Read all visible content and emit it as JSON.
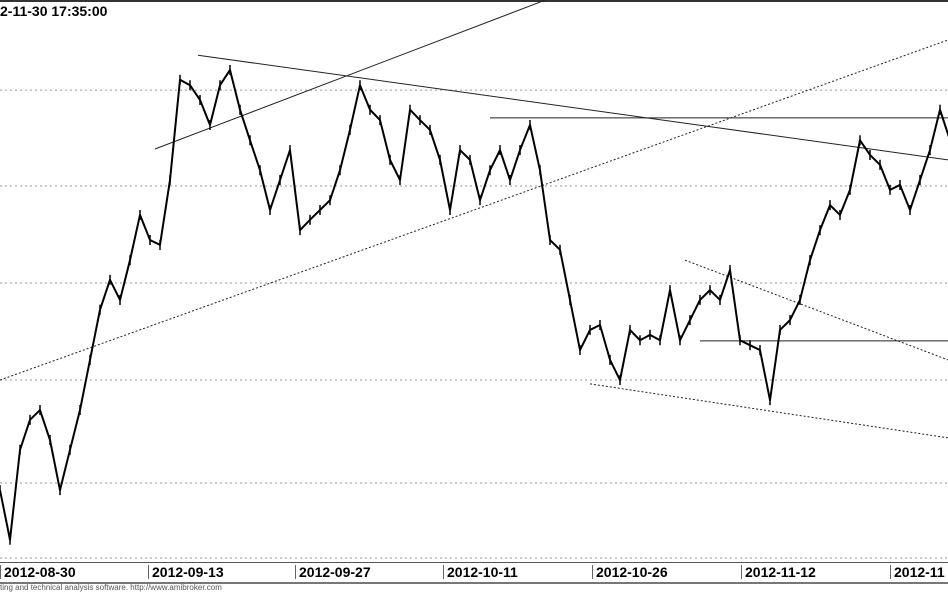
{
  "header": {
    "title": "2-11-30 17:35:00"
  },
  "footer": {
    "text": "ting and technical analysis software. http://www.amibroker.com"
  },
  "chart_data": {
    "type": "line",
    "title": "2-11-30 17:35:00",
    "xlabel": "",
    "ylabel": "",
    "ylim": [
      0,
      100
    ],
    "xlim": [
      0,
      94.8
    ],
    "grid": true,
    "gridlines_y": [
      85.3,
      67.7,
      49.9,
      32.1,
      13.2
    ],
    "x_ticks": [
      {
        "index": 0,
        "label": "2012-08-30"
      },
      {
        "index": 14.8,
        "label": "2012-09-13"
      },
      {
        "index": 29.5,
        "label": "2012-09-27"
      },
      {
        "index": 44.3,
        "label": "2012-10-11"
      },
      {
        "index": 59.2,
        "label": "2012-10-26"
      },
      {
        "index": 74.1,
        "label": "2012-11-12"
      },
      {
        "index": 89,
        "label": "2012-11"
      }
    ],
    "series": [
      {
        "values": [
          11.9,
          2.8,
          19.3,
          24.8,
          26.6,
          21.1,
          11.9,
          19.3,
          26.6,
          35.8,
          45,
          50.5,
          46.8,
          54.1,
          62.4,
          57.8,
          56.9,
          68.8,
          87.2,
          86.2,
          83.5,
          78.9,
          86.2,
          89,
          81.7,
          76.1,
          70.6,
          63.3,
          68.8,
          74.3,
          59.6,
          61.5,
          63.3,
          65.1,
          70.6,
          78,
          86.2,
          81.7,
          79.8,
          72.5,
          68.8,
          81.7,
          79.8,
          78,
          72.5,
          63.3,
          74.3,
          72.5,
          65.1,
          70.6,
          74.3,
          68.8,
          74.3,
          78.9,
          70.6,
          57.8,
          56,
          46.8,
          37.6,
          41.3,
          42.2,
          35.8,
          32.1,
          41.3,
          39.4,
          40.4,
          39.4,
          48.6,
          39.4,
          43.1,
          46.8,
          48.6,
          46.8,
          52.3,
          39.4,
          38.5,
          37.6,
          28.4,
          41.3,
          43.1,
          46.8,
          54.1,
          59.6,
          64.2,
          62.4,
          67,
          76.1,
          73.4,
          71.6,
          67,
          67.9,
          63.3,
          68.8,
          74.3,
          81.7,
          76.1,
          72.5,
          70.6,
          80.7,
          78
        ],
        "color": "#000000"
      }
    ],
    "trendlines": [
      {
        "from": [
          15.5,
          74.5
        ],
        "to": [
          54.5,
          101.8
        ],
        "style": "solid"
      },
      {
        "from": [
          19.8,
          91.7
        ],
        "to": [
          94.8,
          72.5
        ],
        "style": "solid"
      },
      {
        "from": [
          0,
          32.1
        ],
        "to": [
          94.8,
          94.5
        ],
        "style": "dashed"
      },
      {
        "from": [
          49,
          80.2
        ],
        "to": [
          94.8,
          80.2
        ],
        "style": "solid"
      },
      {
        "from": [
          68.5,
          54.1
        ],
        "to": [
          94.8,
          35.8
        ],
        "style": "dashed"
      },
      {
        "from": [
          70,
          39.3
        ],
        "to": [
          94.8,
          39.3
        ],
        "style": "solid"
      },
      {
        "from": [
          59,
          31.4
        ],
        "to": [
          94.8,
          21.5
        ],
        "style": "dashed"
      }
    ]
  }
}
